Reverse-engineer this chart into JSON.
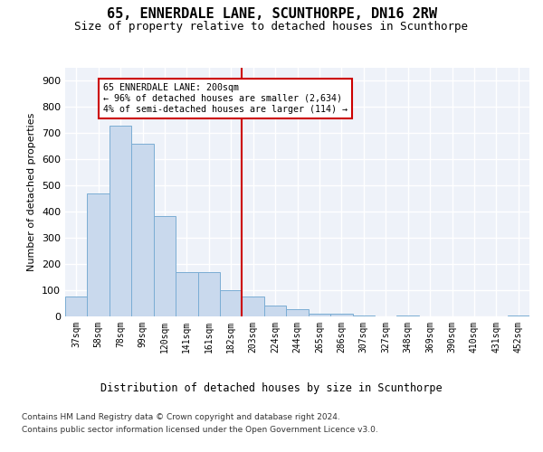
{
  "title": "65, ENNERDALE LANE, SCUNTHORPE, DN16 2RW",
  "subtitle": "Size of property relative to detached houses in Scunthorpe",
  "xlabel": "Distribution of detached houses by size in Scunthorpe",
  "ylabel": "Number of detached properties",
  "bar_color": "#c9d9ed",
  "bar_edge_color": "#7aadd4",
  "categories": [
    "37sqm",
    "58sqm",
    "78sqm",
    "99sqm",
    "120sqm",
    "141sqm",
    "161sqm",
    "182sqm",
    "203sqm",
    "224sqm",
    "244sqm",
    "265sqm",
    "286sqm",
    "307sqm",
    "327sqm",
    "348sqm",
    "369sqm",
    "390sqm",
    "410sqm",
    "431sqm",
    "452sqm"
  ],
  "values": [
    75,
    470,
    730,
    660,
    385,
    170,
    170,
    100,
    75,
    40,
    28,
    12,
    10,
    5,
    0,
    5,
    0,
    0,
    0,
    0,
    5
  ],
  "vline_x_idx": 7.5,
  "vline_color": "#cc0000",
  "annotation_text_line1": "65 ENNERDALE LANE: 200sqm",
  "annotation_text_line2": "← 96% of detached houses are smaller (2,634)",
  "annotation_text_line3": "4% of semi-detached houses are larger (114) →",
  "annotation_box_color": "#cc0000",
  "ylim": [
    0,
    950
  ],
  "yticks": [
    0,
    100,
    200,
    300,
    400,
    500,
    600,
    700,
    800,
    900
  ],
  "footer_line1": "Contains HM Land Registry data © Crown copyright and database right 2024.",
  "footer_line2": "Contains public sector information licensed under the Open Government Licence v3.0.",
  "background_color": "#eef2f9",
  "grid_color": "#ffffff",
  "fig_background": "#ffffff"
}
